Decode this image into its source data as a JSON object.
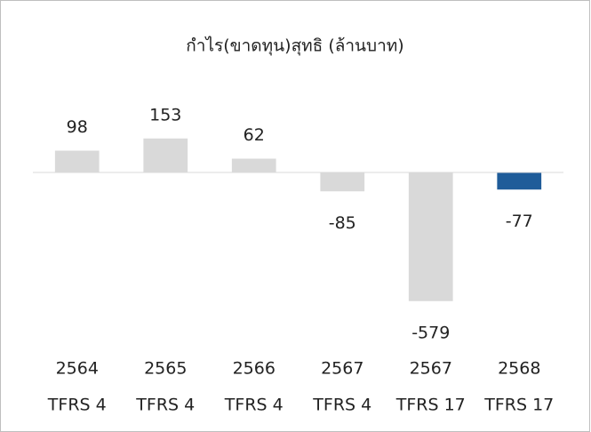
{
  "chart_data": {
    "type": "bar",
    "title": "กำไร(ขาดทุน)สุทธิ (ล้านบาท)",
    "categories": [
      [
        "2564",
        "TFRS 4"
      ],
      [
        "2565",
        "TFRS 4"
      ],
      [
        "2566",
        "TFRS 4"
      ],
      [
        "2567",
        "TFRS 4"
      ],
      [
        "2567",
        "TFRS 17"
      ],
      [
        "2568",
        "TFRS 17"
      ]
    ],
    "values": [
      98,
      153,
      62,
      -85,
      -579,
      -77
    ],
    "colors": [
      "#d9d9d9",
      "#d9d9d9",
      "#d9d9d9",
      "#d9d9d9",
      "#d9d9d9",
      "#1f5c99"
    ],
    "ylim": [
      -700,
      300
    ]
  }
}
